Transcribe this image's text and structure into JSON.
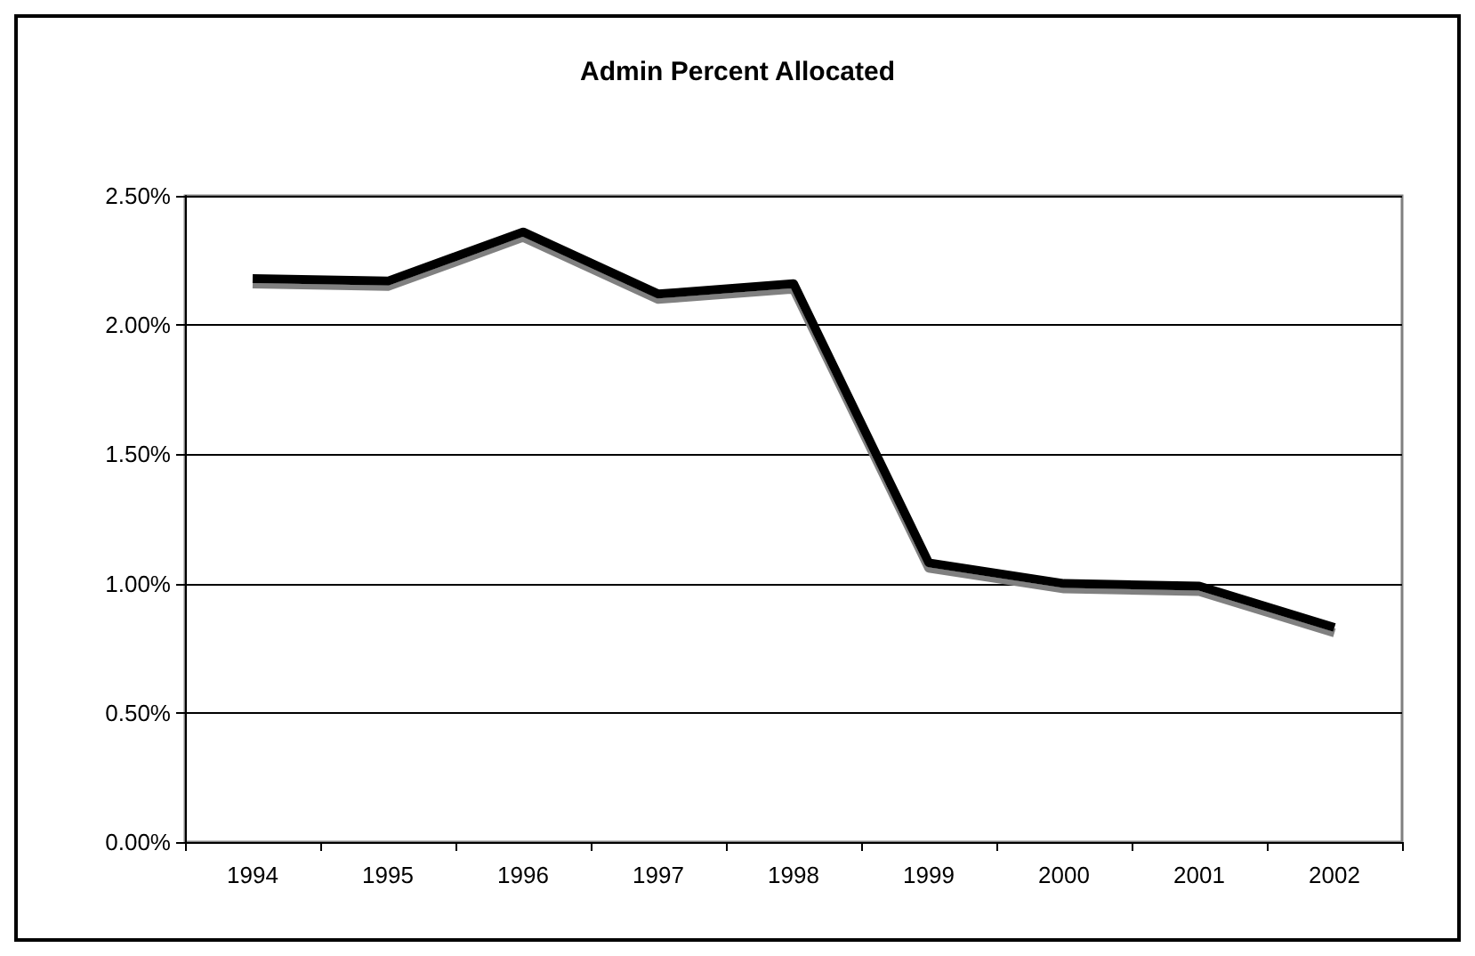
{
  "chart_data": {
    "type": "line",
    "title": "Admin Percent Allocated",
    "categories": [
      "1994",
      "1995",
      "1996",
      "1997",
      "1998",
      "1999",
      "2000",
      "2001",
      "2002"
    ],
    "series": [
      {
        "color": "#000000",
        "values": [
          2.18,
          2.17,
          2.36,
          2.12,
          2.16,
          1.08,
          1.0,
          0.99,
          0.83
        ]
      }
    ],
    "ylim": [
      0,
      2.5
    ],
    "yticks": [
      {
        "value": 0,
        "label": "0.00%"
      },
      {
        "value": 0.5,
        "label": "0.50%"
      },
      {
        "value": 1,
        "label": "1.00%"
      },
      {
        "value": 1.5,
        "label": "1.50%"
      },
      {
        "value": 2,
        "label": "2.00%"
      },
      {
        "value": 2.5,
        "label": "2.50%"
      }
    ],
    "grid": "y",
    "marker": "none",
    "line_style": "solid"
  }
}
